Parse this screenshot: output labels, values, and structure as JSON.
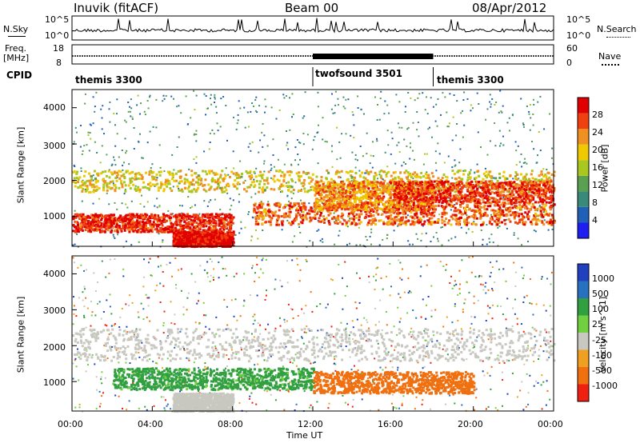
{
  "header": {
    "station": "Inuvik (fitACF)",
    "beam": "Beam 00",
    "date": "08/Apr/2012"
  },
  "nsky_panel": {
    "left_label": "N.Sky",
    "right_label": "N.Search",
    "left_ticks": [
      "10^5",
      "10^0"
    ],
    "right_ticks": [
      "10^5",
      "10^0"
    ]
  },
  "freq_panel": {
    "left_label": "Freq.",
    "left_unit": "[MHz]",
    "left_ticks": [
      "18",
      "8"
    ],
    "right_label": "Nave",
    "right_ticks": [
      "60",
      "0"
    ]
  },
  "cpid": {
    "label": "CPID",
    "segments": [
      {
        "name": "themis 3300",
        "start_hour": 0,
        "end_hour": 12
      },
      {
        "name": "twofsound 3501",
        "start_hour": 12,
        "end_hour": 18
      },
      {
        "name": "themis 3300",
        "start_hour": 18,
        "end_hour": 24
      }
    ]
  },
  "time_axis": {
    "label": "Time UT",
    "ticks": [
      "00:00",
      "04:00",
      "08:00",
      "12:00",
      "16:00",
      "20:00",
      "00:00"
    ]
  },
  "colors": {
    "power": [
      "#1e1ef0",
      "#2060b8",
      "#3a8a7a",
      "#5aa050",
      "#a8c820",
      "#f0c800",
      "#f09020",
      "#f04010",
      "#e00000"
    ],
    "velocity": [
      "#2040c0",
      "#2870c0",
      "#30a040",
      "#70d040",
      "#c8c8c0",
      "#f0a020",
      "#f07010",
      "#f02010"
    ]
  },
  "chart_data": [
    {
      "type": "heatmap",
      "quantity": "power",
      "ylabel": "Slant Range [km]",
      "xlabel": "",
      "xlim": [
        0,
        24
      ],
      "ylim": [
        180,
        4500
      ],
      "yticks": [
        "1000",
        "2000",
        "3000",
        "4000"
      ],
      "colorbar_label": "Power [dB]",
      "colorbar_ticks": [
        "4",
        "8",
        "12",
        "16",
        "20",
        "24",
        "28"
      ],
      "colorbar_range": [
        0,
        30
      ],
      "bands": [
        {
          "hours": [
            0,
            24
          ],
          "range_km": [
            1700,
            2300
          ],
          "value": 18
        },
        {
          "hours": [
            0,
            8
          ],
          "range_km": [
            600,
            1100
          ],
          "value": 27
        },
        {
          "hours": [
            5,
            8
          ],
          "range_km": [
            200,
            600
          ],
          "value": 29
        },
        {
          "hours": [
            9,
            24
          ],
          "range_km": [
            800,
            1400
          ],
          "value": 24
        },
        {
          "hours": [
            12,
            18
          ],
          "range_km": [
            1200,
            2000
          ],
          "value": 22
        },
        {
          "hours": [
            16,
            24
          ],
          "range_km": [
            1400,
            2000
          ],
          "value": 26
        }
      ]
    },
    {
      "type": "heatmap",
      "quantity": "velocity",
      "ylabel": "Slant Range [km]",
      "xlabel": "Time UT",
      "xlim": [
        0,
        24
      ],
      "ylim": [
        180,
        4500
      ],
      "yticks": [
        "1000",
        "2000",
        "3000",
        "4000"
      ],
      "colorbar_label": "Velocity [m s^-1]",
      "colorbar_ticks": [
        "1000",
        "500",
        "100",
        "25",
        "-25",
        "-100",
        "-500",
        "-1000"
      ],
      "bands": [
        {
          "hours": [
            0,
            24
          ],
          "range_km": [
            1600,
            2500
          ],
          "value": 0
        },
        {
          "hours": [
            2,
            12
          ],
          "range_km": [
            800,
            1400
          ],
          "value": 150
        },
        {
          "hours": [
            12,
            20
          ],
          "range_km": [
            700,
            1300
          ],
          "value": -200
        },
        {
          "hours": [
            5,
            8
          ],
          "range_km": [
            200,
            700
          ],
          "value": 0
        }
      ]
    }
  ]
}
